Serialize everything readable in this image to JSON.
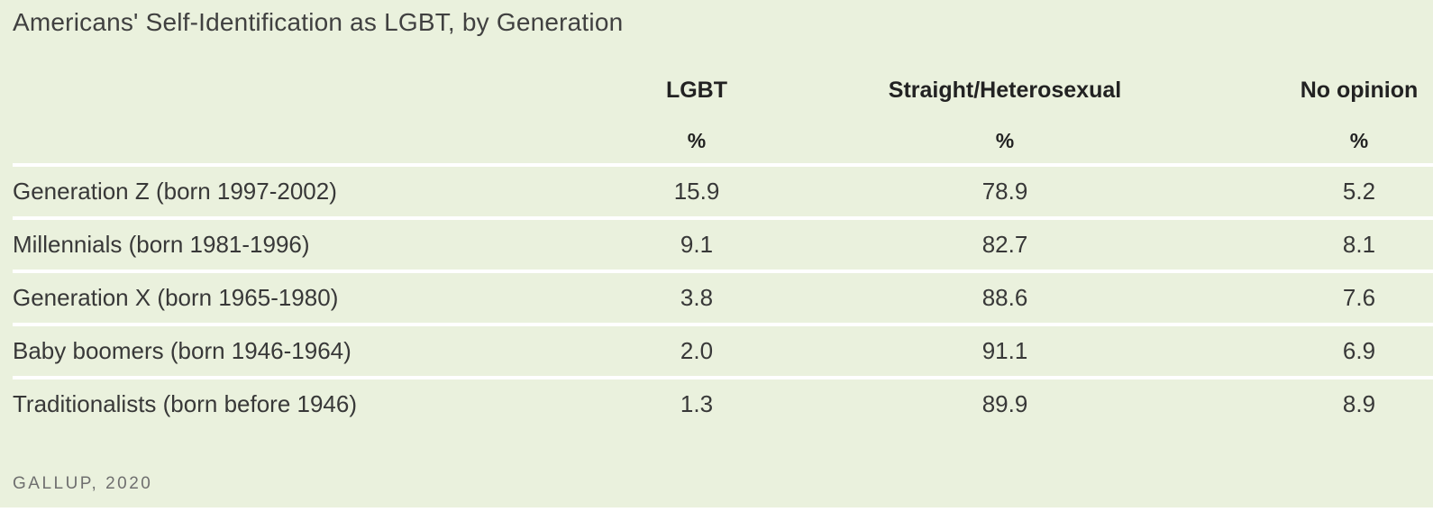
{
  "title": "Americans' Self-Identification as LGBT, by Generation",
  "source": "GALLUP, 2020",
  "colors": {
    "panel_background": "#eaf1dd",
    "row_separator": "#ffffff",
    "title_text": "#404040",
    "header_text": "#222222",
    "body_text": "#383838",
    "source_text": "#6f6f6f"
  },
  "chart_data": {
    "type": "table",
    "title": "Americans' Self-Identification as LGBT, by Generation",
    "columns": [
      "LGBT",
      "Straight/Heterosexual",
      "No opinion"
    ],
    "unit_row": [
      "%",
      "%",
      "%"
    ],
    "rows": [
      {
        "label": "Generation Z (born 1997-2002)",
        "values": [
          "15.9",
          "78.9",
          "5.2"
        ]
      },
      {
        "label": "Millennials (born 1981-1996)",
        "values": [
          "9.1",
          "82.7",
          "8.1"
        ]
      },
      {
        "label": "Generation X (born 1965-1980)",
        "values": [
          "3.8",
          "88.6",
          "7.6"
        ]
      },
      {
        "label": "Baby boomers (born 1946-1964)",
        "values": [
          "2.0",
          "91.1",
          "6.9"
        ]
      },
      {
        "label": "Traditionalists (born before 1946)",
        "values": [
          "1.3",
          "89.9",
          "8.9"
        ]
      }
    ],
    "source": "GALLUP, 2020",
    "layout": {
      "label_column_align": "left",
      "value_columns_align": "center",
      "grid": "horizontal-white-separators",
      "legend": "none"
    }
  }
}
